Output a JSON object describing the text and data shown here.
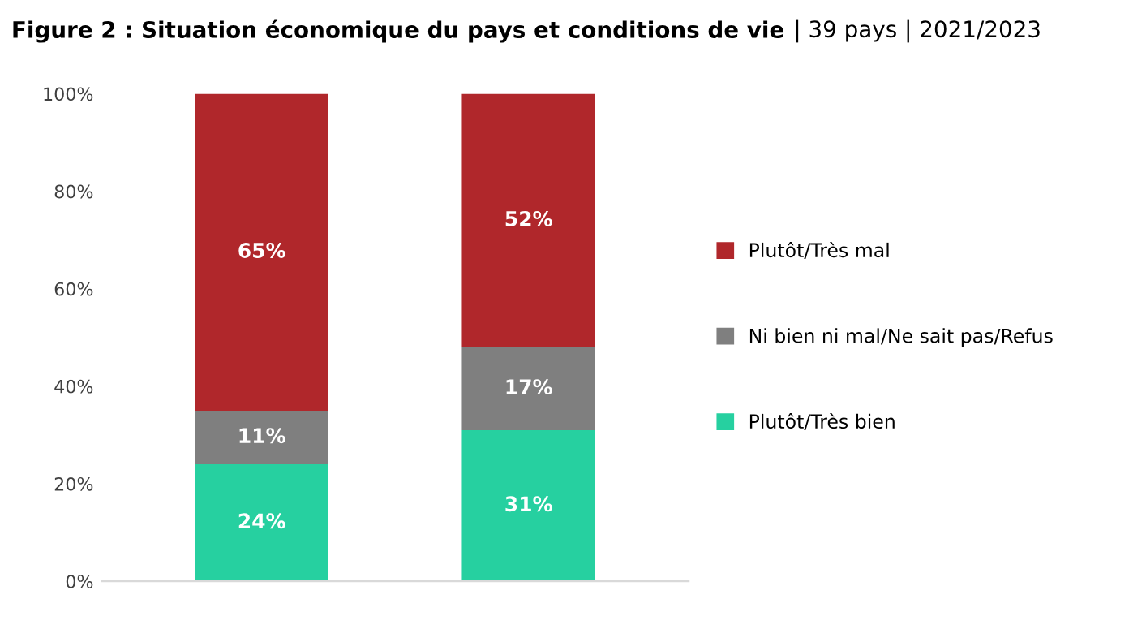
{
  "chart_data": {
    "type": "bar",
    "title": "Figure 2 : Situation économique du pays et conditions de vie",
    "subtitle": "| 39 pays | 2021/2023",
    "categories": [
      null,
      null
    ],
    "stacked": true,
    "series": [
      {
        "name": "Plutôt/Très bien",
        "color": "#26d0a0",
        "values": [
          24,
          31
        ],
        "value_labels": [
          "24%",
          "31%"
        ]
      },
      {
        "name": "Ni bien ni mal/Ne sait pas/Refus",
        "color": "#7f7f7f",
        "values": [
          11,
          17
        ],
        "value_labels": [
          "11%",
          "17%"
        ]
      },
      {
        "name": "Plutôt/Très mal",
        "color": "#b0272b",
        "values": [
          65,
          52
        ],
        "value_labels": [
          "65%",
          "52%"
        ]
      }
    ],
    "ylim": [
      0,
      100
    ],
    "yticks": [
      {
        "value": 0,
        "label": "0%"
      },
      {
        "value": 20,
        "label": "20%"
      },
      {
        "value": 40,
        "label": "40%"
      },
      {
        "value": 60,
        "label": "60%"
      },
      {
        "value": 80,
        "label": "80%"
      },
      {
        "value": 100,
        "label": "100%"
      }
    ],
    "grid": false,
    "legend": "right",
    "tick_labels": "y"
  }
}
